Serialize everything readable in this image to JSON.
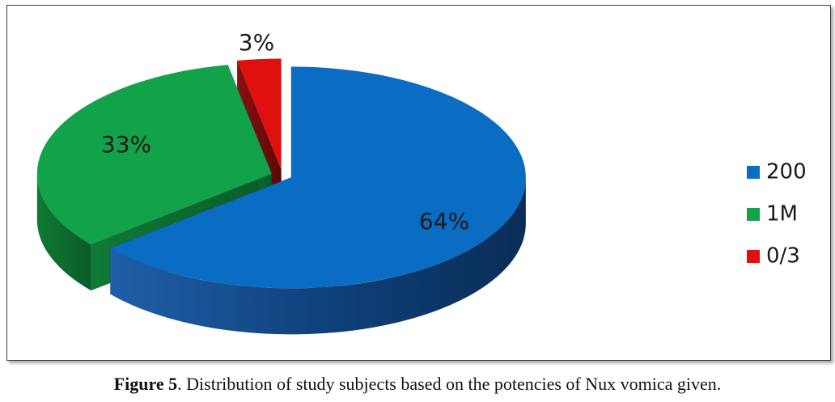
{
  "chart_data": {
    "type": "pie",
    "style": "3d-exploded",
    "categories": [
      "200",
      "1M",
      "0/3"
    ],
    "values": [
      64,
      33,
      3
    ],
    "data_labels": [
      "64%",
      "33%",
      "3%"
    ],
    "colors": [
      "#0a6cc2",
      "#12a34a",
      "#e0100f"
    ],
    "legend": {
      "position": "right",
      "items": [
        {
          "label": "200",
          "color": "#0a6cc2"
        },
        {
          "label": "1M",
          "color": "#12a34a"
        },
        {
          "label": "0/3",
          "color": "#e0100f"
        }
      ]
    }
  },
  "caption": {
    "label": "Figure 5",
    "text": ". Distribution of study subjects based on the potencies of Nux vomica given."
  }
}
